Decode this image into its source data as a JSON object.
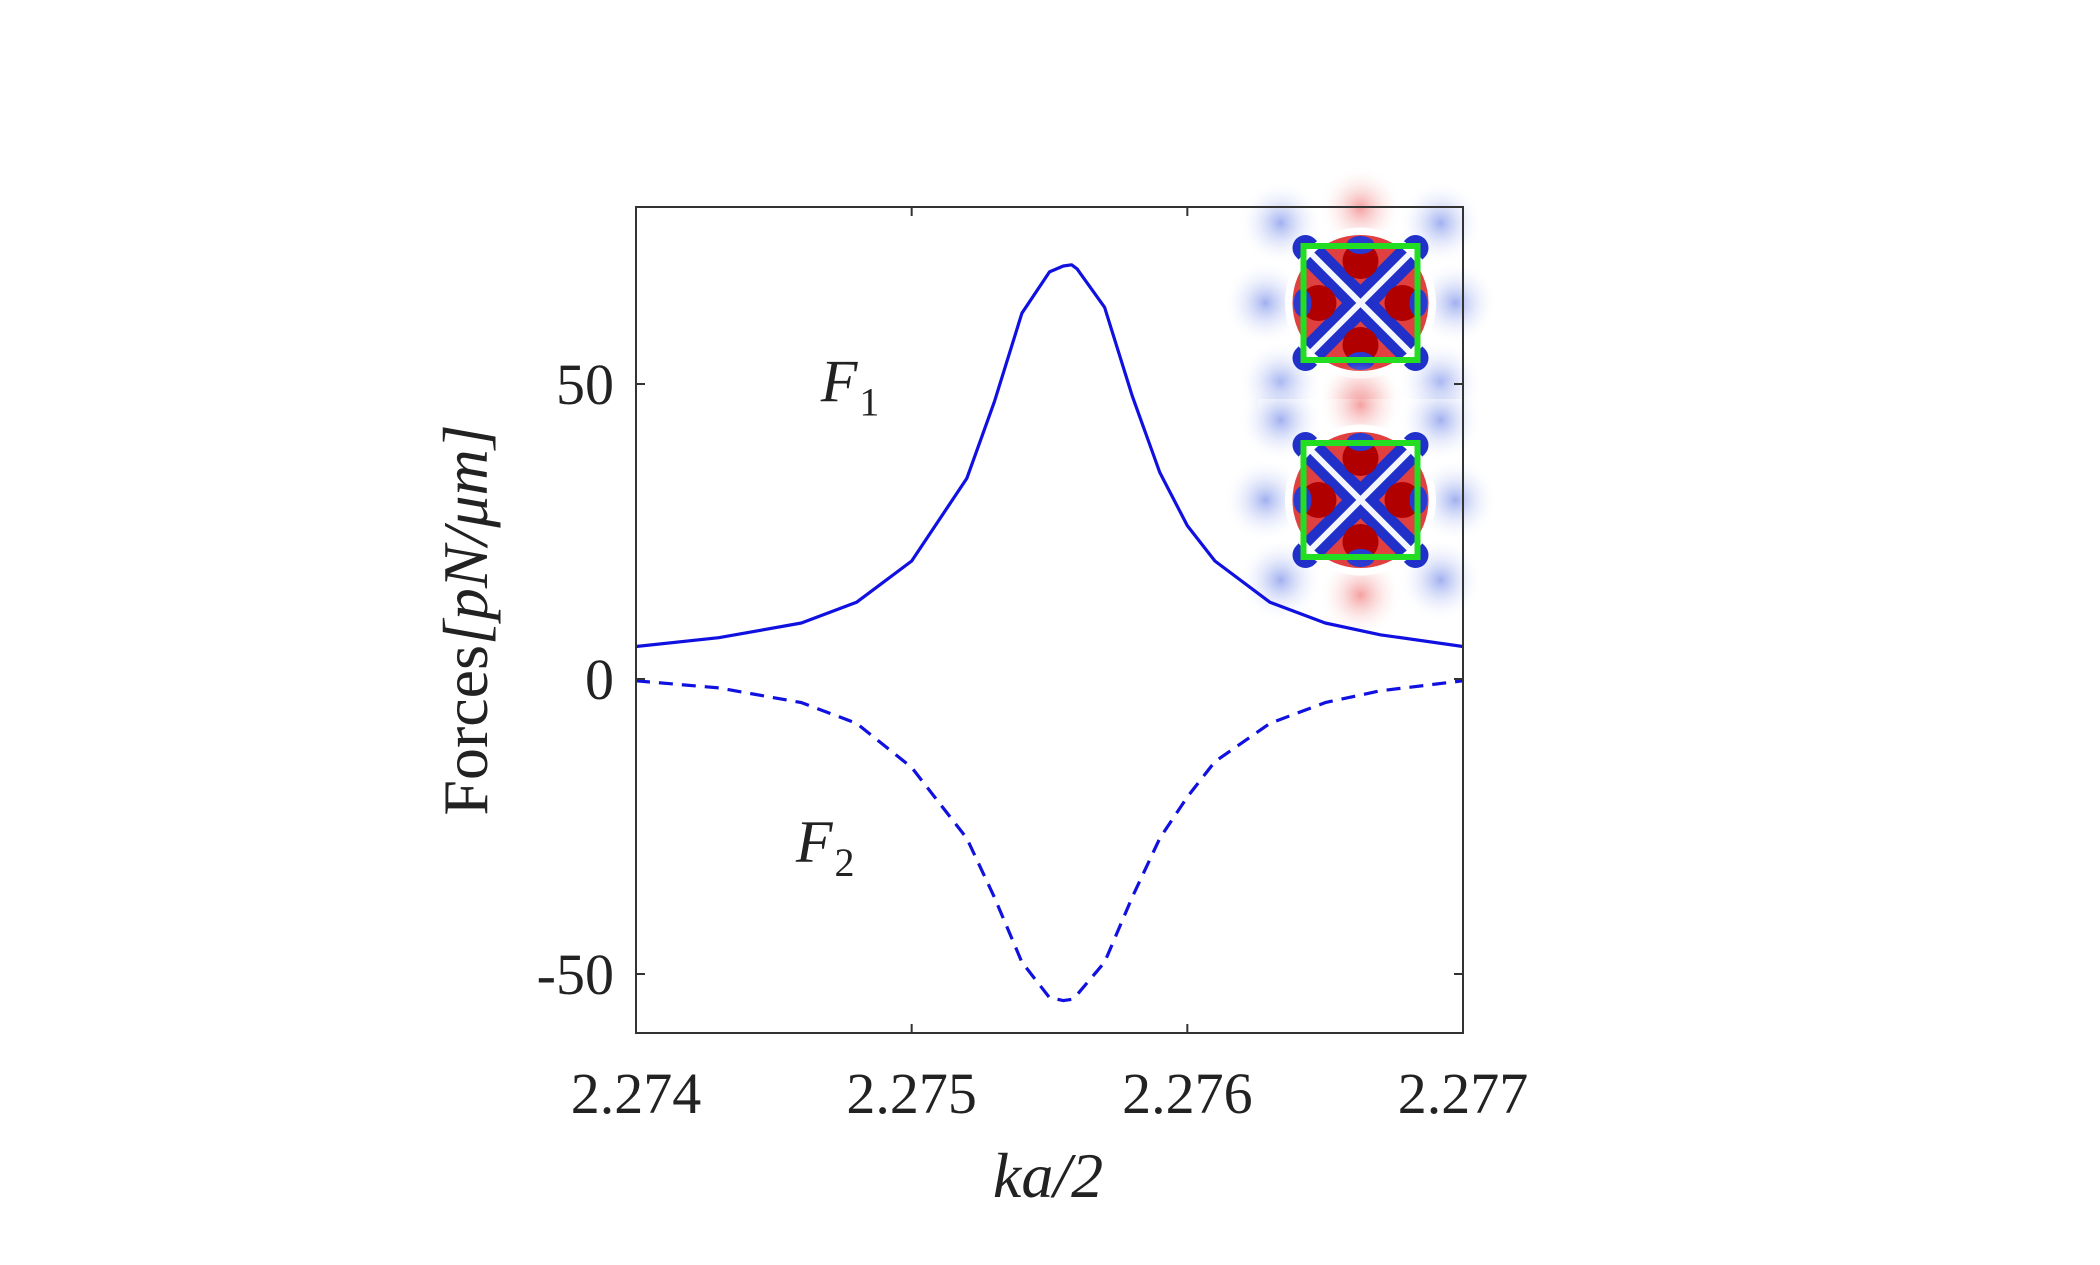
{
  "chart_data": {
    "type": "line",
    "title": "",
    "xlabel": "ka/2",
    "ylabel_prefix": "Forces",
    "ylabel_unit": "[pN/μm]",
    "xlim": [
      2.274,
      2.277
    ],
    "ylim": [
      -60,
      80
    ],
    "xticks": [
      "2.274",
      "2.275",
      "2.276",
      "2.277"
    ],
    "yticks": [
      "-50",
      "0",
      "50"
    ],
    "xtick_values": [
      2.274,
      2.275,
      2.276,
      2.277
    ],
    "ytick_values": [
      -50,
      0,
      50
    ],
    "grid": false,
    "series": [
      {
        "name": "F1",
        "label_main": "F",
        "label_sub": "1",
        "style": "solid",
        "color": "#1010e0",
        "x": [
          2.274,
          2.2743,
          2.2746,
          2.2748,
          2.275,
          2.2752,
          2.2753,
          2.2754,
          2.2755,
          2.27555,
          2.27558,
          2.2756,
          2.2757,
          2.2758,
          2.2759,
          2.276,
          2.2761,
          2.2763,
          2.2765,
          2.2767,
          2.277
        ],
        "values": [
          5.5,
          7,
          9.5,
          13,
          20,
          34,
          47,
          62,
          69,
          70,
          70.2,
          69.5,
          63,
          48,
          35,
          26,
          20,
          13,
          9.5,
          7.5,
          5.5
        ]
      },
      {
        "name": "F2",
        "label_main": "F",
        "label_sub": "2",
        "style": "dashed",
        "color": "#1010e0",
        "x": [
          2.274,
          2.2743,
          2.2746,
          2.2748,
          2.275,
          2.2752,
          2.2753,
          2.2754,
          2.2755,
          2.27555,
          2.27558,
          2.2756,
          2.2757,
          2.2758,
          2.2759,
          2.276,
          2.2761,
          2.2763,
          2.2765,
          2.2767,
          2.277
        ],
        "values": [
          -0.3,
          -1.5,
          -4,
          -7.5,
          -15,
          -27,
          -37,
          -48,
          -54,
          -54.5,
          -54.3,
          -53.5,
          -48,
          -37,
          -27,
          -20,
          -14,
          -7.5,
          -4,
          -2,
          -0.3
        ]
      }
    ],
    "annotations": [
      {
        "name": "F1",
        "main": "F",
        "sub": "1",
        "x": 2.27467,
        "y": 47
      },
      {
        "name": "F2",
        "main": "F",
        "sub": "2",
        "x": 2.27458,
        "y": -31
      }
    ],
    "inset": {
      "description_colors": {
        "positive": "#dd1111",
        "negative": "#1122cc",
        "ring": "#ffffff",
        "square": "#22dd22"
      },
      "panels": 2
    }
  }
}
